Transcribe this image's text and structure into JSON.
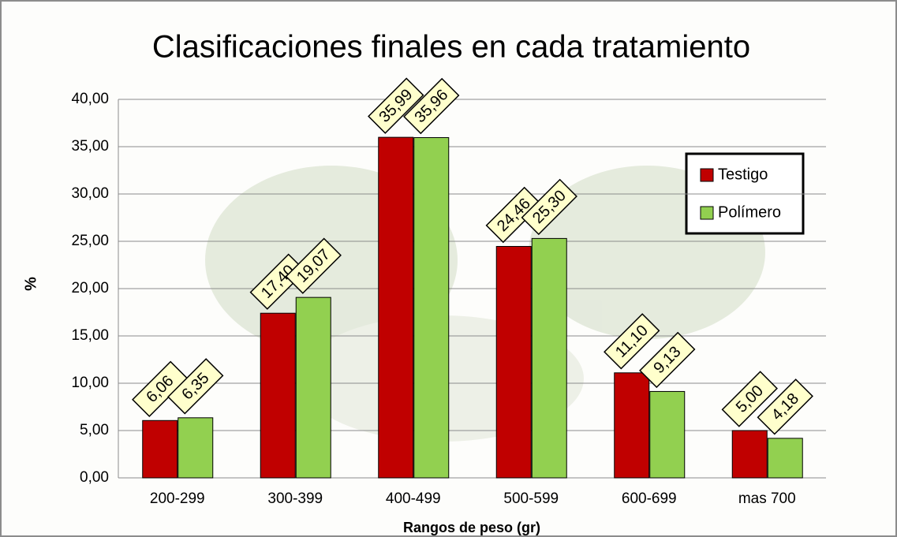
{
  "chart_data": {
    "type": "bar",
    "title": "Clasificaciones finales en cada tratamiento",
    "x_label": "Rangos  de peso (gr)",
    "y_label": "%",
    "categories": [
      "200-299",
      "300-399",
      "400-499",
      "500-599",
      "600-699",
      "mas 700"
    ],
    "series": [
      {
        "name": "Testigo",
        "color": "#c00000",
        "values": [
          6.06,
          17.4,
          35.99,
          24.46,
          11.1,
          5.0
        ],
        "value_labels": [
          "6,06",
          "17,40",
          "35,99",
          "24,46",
          "11,10",
          "5,00"
        ]
      },
      {
        "name": "Polímero",
        "color": "#92d050",
        "values": [
          6.35,
          19.07,
          35.96,
          25.3,
          9.13,
          4.18
        ],
        "value_labels": [
          "6,35",
          "19,07",
          "35,96",
          "25,30",
          "9,13",
          "4,18"
        ]
      }
    ],
    "ylim": [
      0,
      40
    ],
    "yticks": [
      {
        "value": 0,
        "label": "0,00"
      },
      {
        "value": 5,
        "label": "5,00"
      },
      {
        "value": 10,
        "label": "10,00"
      },
      {
        "value": 15,
        "label": "15,00"
      },
      {
        "value": 20,
        "label": "20,00"
      },
      {
        "value": 25,
        "label": "25,00"
      },
      {
        "value": 30,
        "label": "30,00"
      },
      {
        "value": 35,
        "label": "35,00"
      },
      {
        "value": 40,
        "label": "40,00"
      }
    ],
    "grid": true,
    "legend": "upper right"
  }
}
